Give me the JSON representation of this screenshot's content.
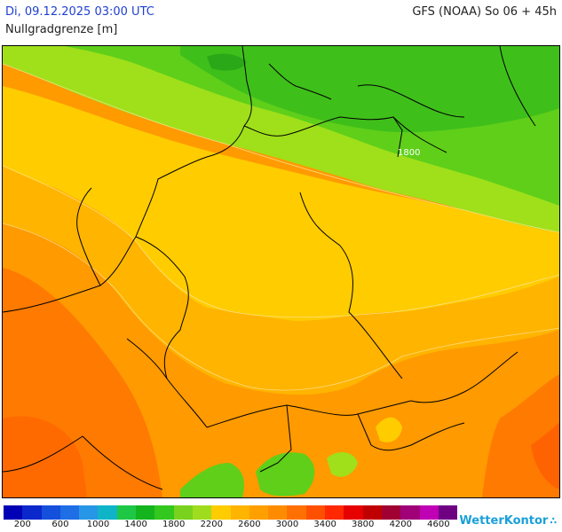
{
  "header": {
    "date_time": "Di, 09.12.2025 03:00 UTC",
    "model_run": "GFS (NOAA) So 06 + 45h",
    "parameter": "Nullgradgrenze [m]"
  },
  "map": {
    "contour_label": "1800",
    "fill_colors": {
      "dark_green": "#3fbf1f",
      "green": "#5fcf1a",
      "yellow_green": "#9fe01a",
      "yellow": "#ffcc00",
      "light_orange": "#ffb400",
      "orange": "#ff9a00",
      "dark_orange": "#ff7a00",
      "red_orange": "#ff6200"
    }
  },
  "legend": {
    "colors": [
      "#0000b4",
      "#0a28cc",
      "#1450dc",
      "#1e6ee6",
      "#2896e6",
      "#10b4c8",
      "#1ec846",
      "#14b41e",
      "#32c81e",
      "#78d21e",
      "#a0dc1e",
      "#ffcc00",
      "#ffb400",
      "#ffa000",
      "#ff8c00",
      "#ff7000",
      "#ff5000",
      "#ff2800",
      "#e60000",
      "#c00000",
      "#a00032",
      "#a00078",
      "#c000b4",
      "#6e0082"
    ],
    "ticks": [
      "200",
      "600",
      "1000",
      "1400",
      "1800",
      "2200",
      "2600",
      "3000",
      "3400",
      "3800",
      "4200",
      "4600"
    ]
  },
  "brand": {
    "name": "WetterKontor",
    "icon": "raindrops-icon"
  }
}
